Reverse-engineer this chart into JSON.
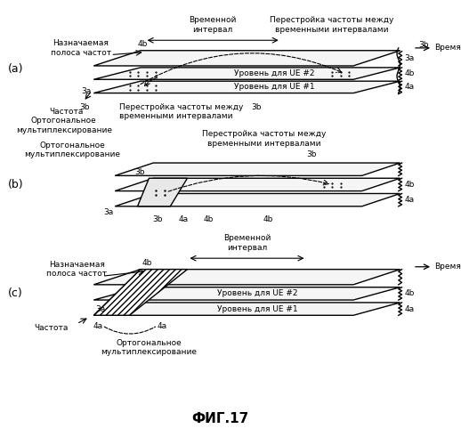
{
  "title": "ФИГ.17",
  "bg_color": "#ffffff",
  "label_a": "(a)",
  "label_b": "(b)",
  "label_c": "(c)",
  "text_time_interval_a": "Временной\nинтервал",
  "text_freq_hop_top": "Перестройка частоты между\nвременными интервалами",
  "text_time_a": "Время",
  "text_assigned_band_a": "Назначаемая\nполоса частот",
  "text_freq_a": "Частота",
  "text_orth_a": "Ортогональное\nмультиплексирование",
  "text_freq_hop_mid": "Перестройка частоты между\nвременными интервалами",
  "text_ue2_a": "Уровень для UE #2",
  "text_ue1_a": "Уровень для UE #1",
  "text_time_interval_c": "Временной\nинтервал",
  "text_time_c": "Время",
  "text_assigned_band_c": "Назначаемая\nполоса частот",
  "text_freq_c": "Частота",
  "text_ue2_c": "Уровень для UE #2",
  "text_ue1_c": "Уровень для UE #1",
  "text_orth_c": "Ортогональное\nмультиплексирование",
  "font_size_small": 6.5,
  "font_size_label": 9,
  "font_size_title": 11
}
